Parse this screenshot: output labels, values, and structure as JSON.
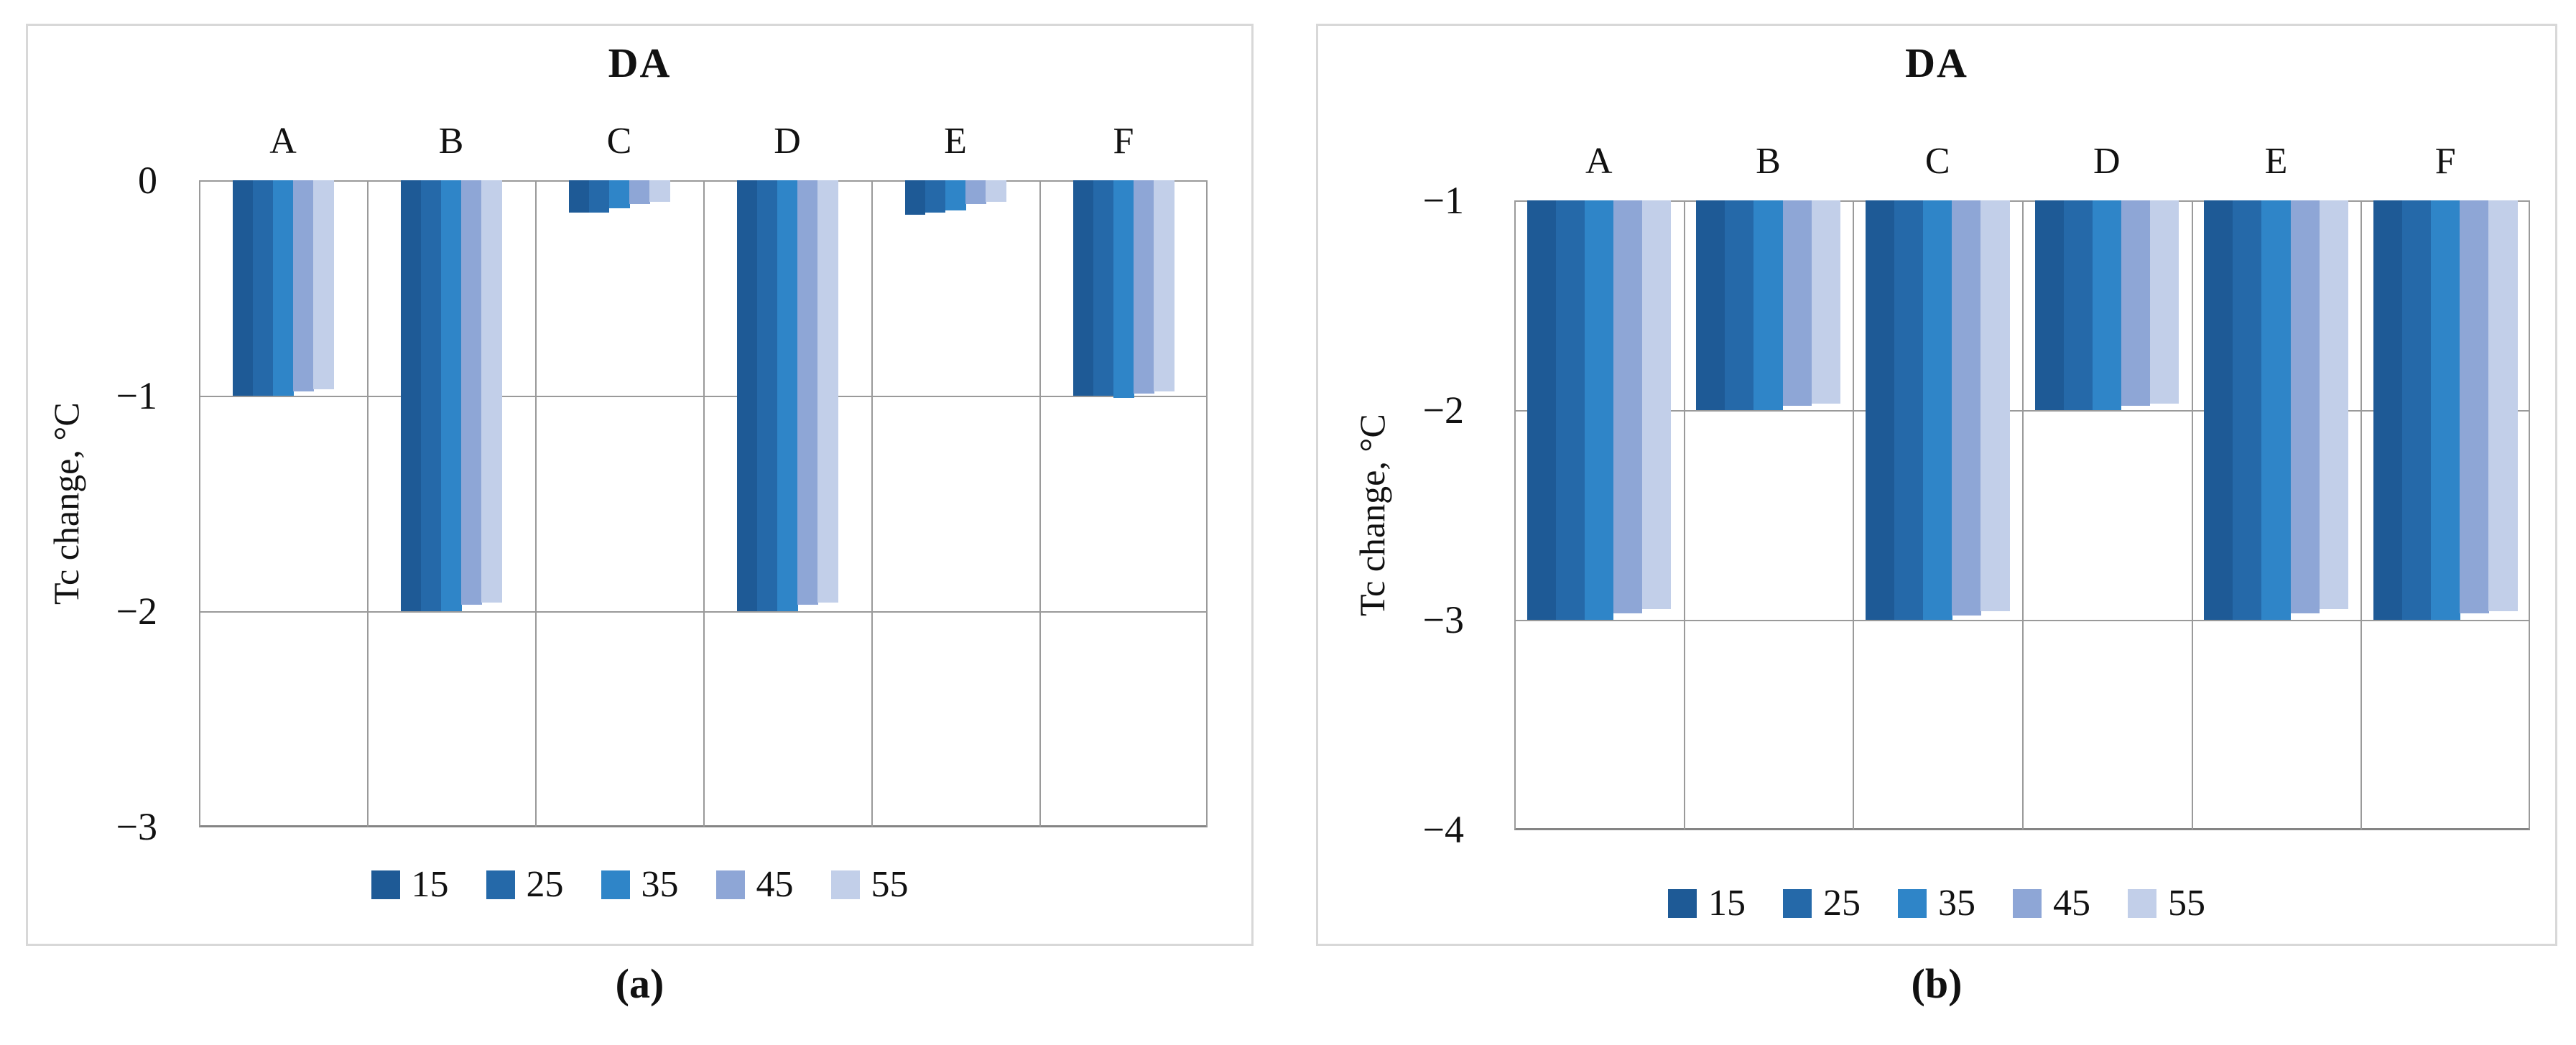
{
  "chart_data": [
    {
      "type": "bar",
      "title": "DA",
      "caption": "(a)",
      "ylabel": "Tc change, °C",
      "categories": [
        "A",
        "B",
        "C",
        "D",
        "E",
        "F"
      ],
      "series": [
        {
          "name": "15",
          "color": "#1E5A96",
          "values": [
            -1.0,
            -2.0,
            -0.15,
            -2.0,
            -0.16,
            -1.0
          ]
        },
        {
          "name": "25",
          "color": "#2569A9",
          "values": [
            -1.0,
            -2.0,
            -0.15,
            -2.0,
            -0.15,
            -1.0
          ]
        },
        {
          "name": "35",
          "color": "#2F85C8",
          "values": [
            -1.0,
            -2.0,
            -0.13,
            -2.0,
            -0.14,
            -1.01
          ]
        },
        {
          "name": "45",
          "color": "#8EA6D6",
          "values": [
            -0.98,
            -1.97,
            -0.11,
            -1.97,
            -0.11,
            -0.99
          ]
        },
        {
          "name": "55",
          "color": "#C2CFE9",
          "values": [
            -0.97,
            -1.96,
            -0.1,
            -1.96,
            -0.1,
            -0.98
          ]
        }
      ],
      "ylim": [
        0,
        -3
      ],
      "ytick_labels": [
        "0",
        "−1",
        "−2",
        "−3"
      ],
      "ytick_values": [
        0,
        -1,
        -2,
        -3
      ],
      "bar_baseline": 0,
      "grid": true,
      "legend_position": "bottom",
      "legend_labels": [
        "15",
        "25",
        "35",
        "45",
        "55"
      ]
    },
    {
      "type": "bar",
      "title": "DA",
      "caption": "(b)",
      "ylabel": "Tc change, °C",
      "categories": [
        "A",
        "B",
        "C",
        "D",
        "E",
        "F"
      ],
      "series": [
        {
          "name": "15",
          "color": "#1E5A96",
          "values": [
            -3.0,
            -2.0,
            -3.0,
            -2.0,
            -3.0,
            -3.0
          ]
        },
        {
          "name": "25",
          "color": "#2569A9",
          "values": [
            -3.0,
            -2.0,
            -3.0,
            -2.0,
            -3.0,
            -3.0
          ]
        },
        {
          "name": "35",
          "color": "#2F85C8",
          "values": [
            -3.0,
            -2.0,
            -3.0,
            -2.0,
            -3.0,
            -3.0
          ]
        },
        {
          "name": "45",
          "color": "#8EA6D6",
          "values": [
            -2.97,
            -1.98,
            -2.98,
            -1.98,
            -2.97,
            -2.97
          ]
        },
        {
          "name": "55",
          "color": "#C2CFE9",
          "values": [
            -2.95,
            -1.97,
            -2.96,
            -1.97,
            -2.95,
            -2.96
          ]
        }
      ],
      "ylim": [
        -1,
        -4
      ],
      "ytick_labels": [
        "−1",
        "−2",
        "−3",
        "−4"
      ],
      "ytick_values": [
        -1,
        -2,
        -3,
        -4
      ],
      "bar_baseline": -1,
      "grid": true,
      "legend_position": "bottom",
      "legend_labels": [
        "15",
        "25",
        "35",
        "45",
        "55"
      ]
    }
  ],
  "styles": {
    "gridline_color": "#9a9a9a",
    "axis_line_color": "#848484",
    "panel_border_color": "#d8d8d8",
    "background": "#ffffff"
  }
}
